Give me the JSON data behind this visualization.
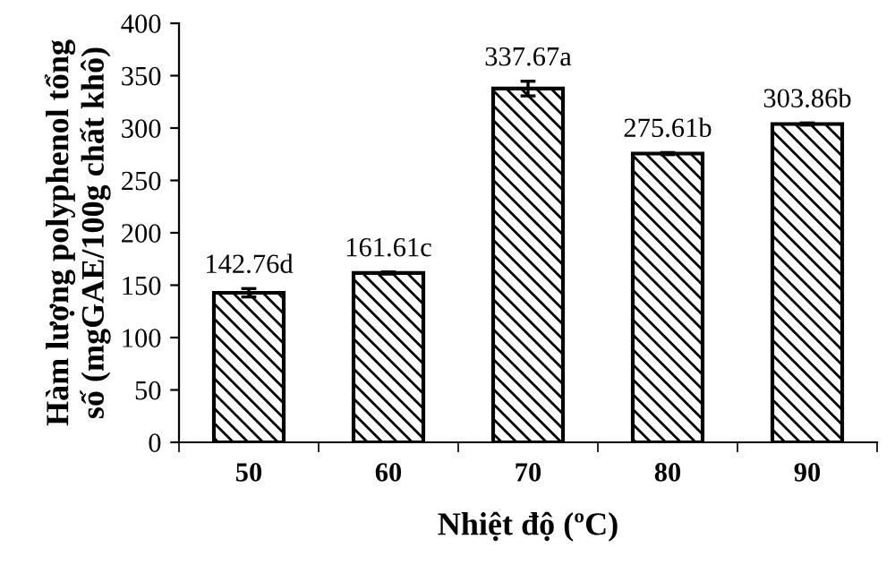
{
  "chart_data": {
    "type": "bar",
    "xlabel": "Nhiệt độ (ºC)",
    "ylabel": "Hàm lượng polyphenol tổng\nsố (mgGAE/100g chất khô)",
    "categories": [
      "50",
      "60",
      "70",
      "80",
      "90"
    ],
    "values": [
      142.76,
      161.61,
      337.67,
      275.61,
      303.86
    ],
    "errors": [
      4,
      1,
      7,
      1,
      1
    ],
    "value_labels": [
      "142.76d",
      "161.61c",
      "337.67a",
      "275.61b",
      "303.86b"
    ],
    "color": "#000000",
    "ylim": [
      0,
      400
    ],
    "yticks": [
      0,
      50,
      100,
      150,
      200,
      250,
      300,
      350,
      400
    ],
    "grid": false,
    "legend": false
  }
}
